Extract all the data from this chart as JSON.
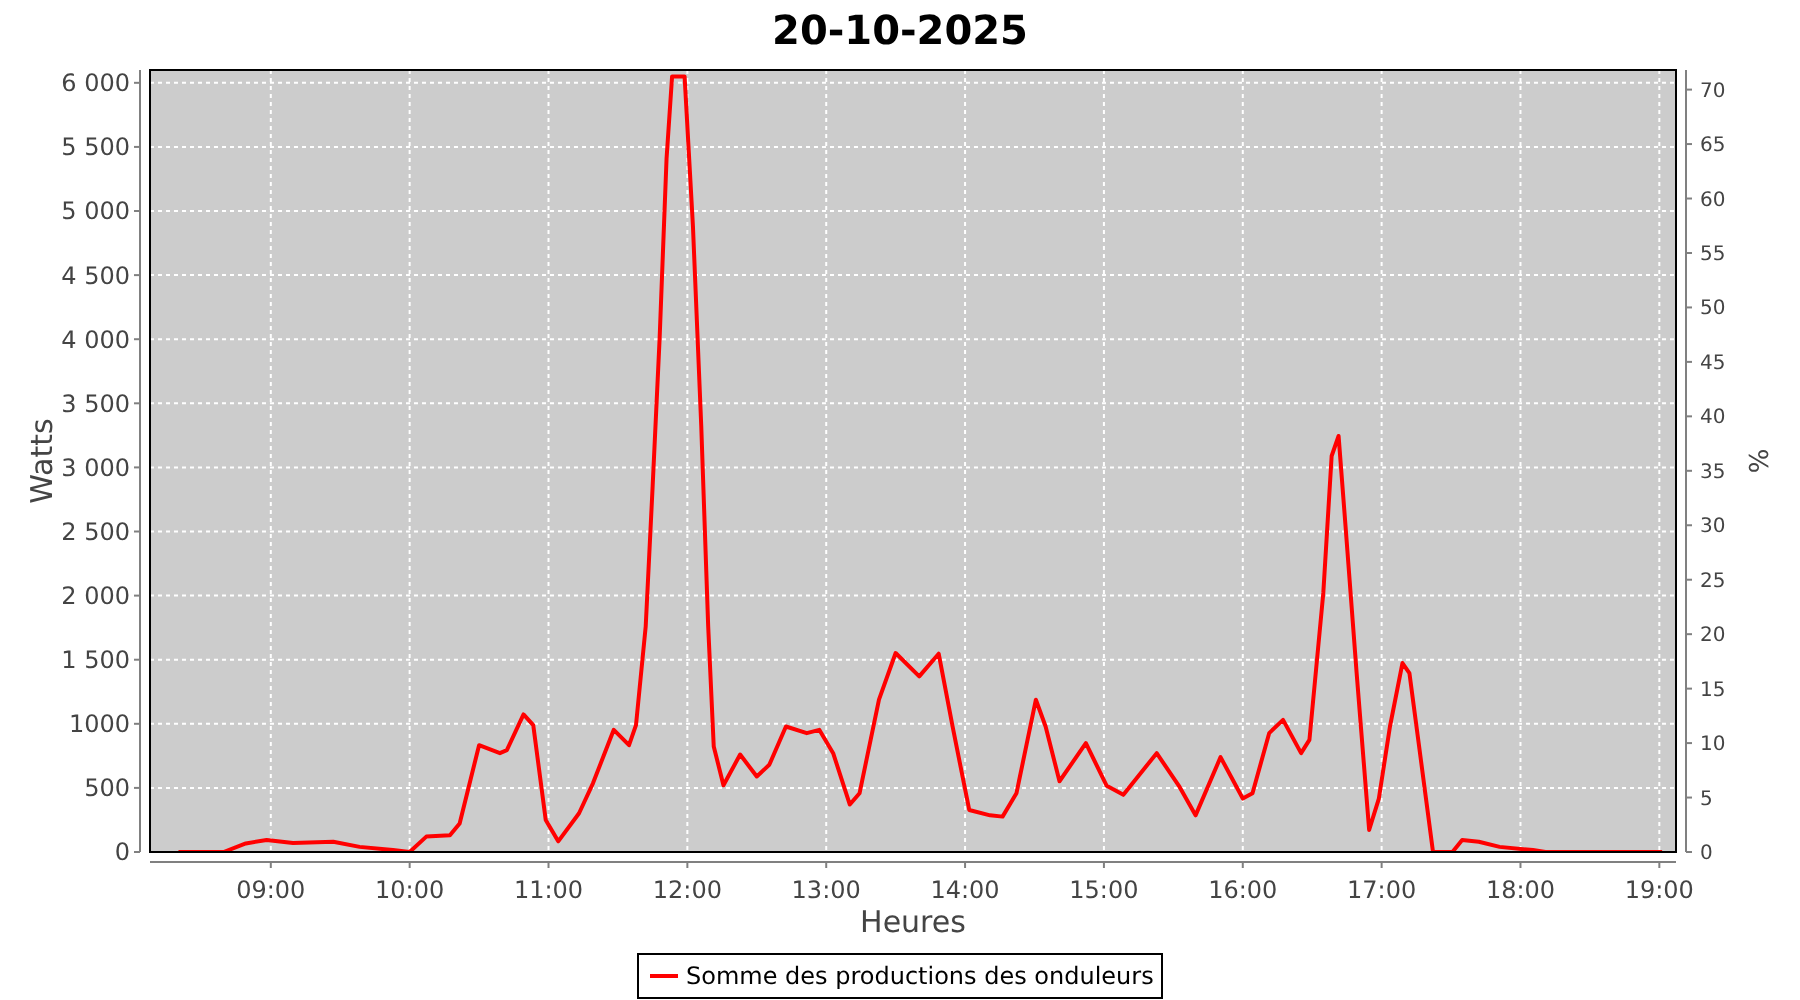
{
  "chart_data": {
    "type": "line",
    "title": "20-10-2025",
    "xlabel": "Heures",
    "ylabel": "Watts",
    "y2label": "%",
    "x": [
      8.335,
      8.66,
      8.82,
      8.97,
      9.16,
      9.45,
      9.64,
      9.88,
      10.0,
      10.12,
      10.29,
      10.36,
      10.5,
      10.65,
      10.7,
      10.82,
      10.89,
      10.98,
      11.07,
      11.22,
      11.32,
      11.47,
      11.58,
      11.63,
      11.7,
      11.75,
      11.8,
      11.85,
      11.89,
      11.98,
      12.04,
      12.1,
      12.15,
      12.19,
      12.26,
      12.38,
      12.5,
      12.59,
      12.71,
      12.86,
      12.95,
      13.05,
      13.17,
      13.24,
      13.38,
      13.5,
      13.67,
      13.81,
      13.91,
      14.03,
      14.18,
      14.27,
      14.37,
      14.51,
      14.58,
      14.68,
      14.87,
      15.02,
      15.14,
      15.38,
      15.54,
      15.66,
      15.84,
      16.0,
      16.07,
      16.19,
      16.29,
      16.42,
      16.48,
      16.58,
      16.64,
      16.69,
      16.74,
      16.82,
      16.91,
      16.98,
      17.06,
      17.15,
      17.2,
      17.27,
      17.37,
      17.51,
      17.58,
      17.7,
      17.85,
      18.09,
      18.18,
      19.02
    ],
    "series": [
      {
        "name": "Somme des productions des onduleurs",
        "color": "#ff0000",
        "values": [
          0,
          0,
          67,
          94,
          70,
          80,
          40,
          15,
          0,
          120,
          130,
          223,
          833,
          771,
          794,
          1073,
          990,
          250,
          83,
          302,
          536,
          953,
          833,
          990,
          1760,
          2854,
          4000,
          5406,
          6050,
          6050,
          4885,
          3323,
          1760,
          823,
          521,
          760,
          589,
          680,
          979,
          927,
          953,
          771,
          370,
          458,
          1188,
          1552,
          1370,
          1547,
          979,
          328,
          286,
          276,
          458,
          1188,
          979,
          552,
          849,
          516,
          446,
          771,
          516,
          286,
          740,
          417,
          458,
          927,
          1031,
          771,
          875,
          2021,
          3089,
          3245,
          2542,
          1396,
          172,
          417,
          979,
          1474,
          1396,
          823,
          0,
          0,
          94,
          80,
          40,
          15,
          0,
          0
        ]
      }
    ],
    "xlim": [
      8.13,
      19.12
    ],
    "xticks": [
      {
        "value": 9,
        "label": "09:00"
      },
      {
        "value": 10,
        "label": "10:00"
      },
      {
        "value": 11,
        "label": "11:00"
      },
      {
        "value": 12,
        "label": "12:00"
      },
      {
        "value": 13,
        "label": "13:00"
      },
      {
        "value": 14,
        "label": "14:00"
      },
      {
        "value": 15,
        "label": "15:00"
      },
      {
        "value": 16,
        "label": "16:00"
      },
      {
        "value": 17,
        "label": "17:00"
      },
      {
        "value": 18,
        "label": "18:00"
      },
      {
        "value": 19,
        "label": "19:00"
      }
    ],
    "ylim": [
      0,
      6100
    ],
    "yticks": [
      0,
      500,
      1000,
      {
        "value": 1500,
        "label": "1 500"
      },
      {
        "value": 2000,
        "label": "2 000"
      },
      {
        "value": 2500,
        "label": "2 500"
      },
      {
        "value": 3000,
        "label": "3 000"
      },
      {
        "value": 3500,
        "label": "3 500"
      },
      {
        "value": 4000,
        "label": "4 000"
      },
      {
        "value": 4500,
        "label": "4 500"
      },
      {
        "value": 5000,
        "label": "5 000"
      },
      {
        "value": 5500,
        "label": "5 500"
      },
      {
        "value": 6000,
        "label": "6 000"
      }
    ],
    "y2lim": [
      0,
      71.8
    ],
    "y2ticks": [
      0,
      5,
      10,
      15,
      20,
      25,
      30,
      35,
      40,
      45,
      50,
      55,
      60,
      65,
      70
    ],
    "grid": true,
    "legend": "bottom",
    "marker": "none",
    "line_style": "solid"
  }
}
